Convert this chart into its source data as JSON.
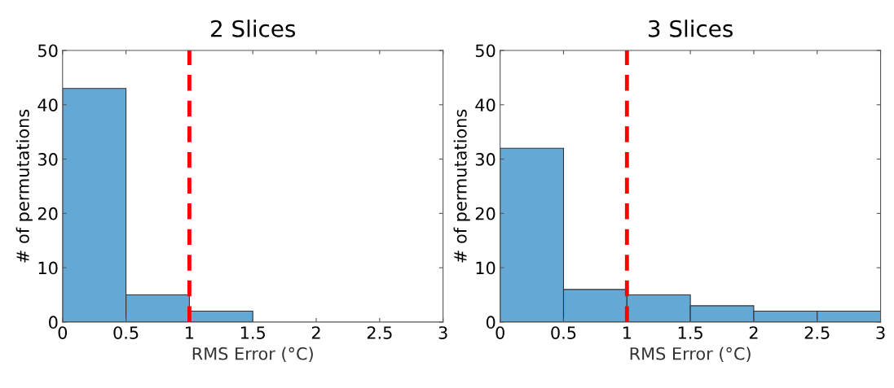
{
  "chart_data": [
    {
      "type": "histogram",
      "title": "2 Slices",
      "xlabel": "RMS Error (°C)",
      "ylabel": "# of permutations",
      "bins": [
        0,
        0.5,
        1,
        1.5
      ],
      "values": [
        43,
        5,
        2
      ],
      "color": "#64a8d6",
      "xlim": [
        0,
        3
      ],
      "ylim": [
        0,
        50
      ],
      "xticks": [
        0,
        0.5,
        1,
        1.5,
        2,
        2.5,
        3
      ],
      "yticks": [
        0,
        10,
        20,
        30,
        40,
        50
      ],
      "grid": false,
      "ref_lines": [
        {
          "axis": "x",
          "value": 1,
          "color": "#ff0000",
          "line_style": "dashed"
        }
      ]
    },
    {
      "type": "histogram",
      "title": "3 Slices",
      "xlabel": "RMS Error (°C)",
      "ylabel": "# of permutations",
      "bins": [
        0,
        0.5,
        1,
        1.5,
        2,
        2.5,
        3
      ],
      "values": [
        32,
        6,
        5,
        3,
        2,
        2
      ],
      "color": "#64a8d6",
      "xlim": [
        0,
        3
      ],
      "ylim": [
        0,
        50
      ],
      "xticks": [
        0,
        0.5,
        1,
        1.5,
        2,
        2.5,
        3
      ],
      "yticks": [
        0,
        10,
        20,
        30,
        40,
        50
      ],
      "grid": false,
      "ref_lines": [
        {
          "axis": "x",
          "value": 1,
          "color": "#ff0000",
          "line_style": "dashed"
        }
      ]
    }
  ]
}
